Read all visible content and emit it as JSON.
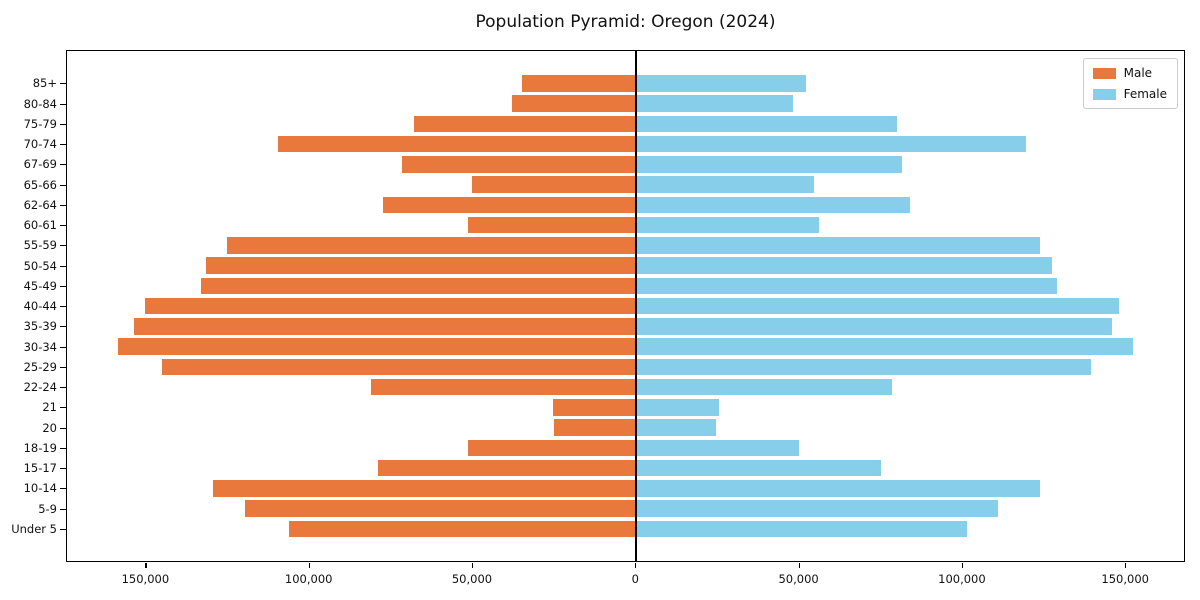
{
  "title": "Population Pyramid: Oregon (2024)",
  "legend": {
    "male_label": "Male",
    "female_label": "Female"
  },
  "colors": {
    "male": "#E8783C",
    "female": "#87CEEB",
    "axis": "#000000"
  },
  "chart_data": {
    "type": "bar",
    "subtype": "population-pyramid",
    "title": "Population Pyramid: Oregon (2024)",
    "xlabel": "",
    "ylabel": "",
    "grid": false,
    "legend_position": "upper right",
    "categories": [
      "85+",
      "80-84",
      "75-79",
      "70-74",
      "67-69",
      "65-66",
      "62-64",
      "60-61",
      "55-59",
      "50-54",
      "45-49",
      "40-44",
      "35-39",
      "30-34",
      "25-29",
      "22-24",
      "21",
      "20",
      "18-19",
      "15-17",
      "10-14",
      "5-9",
      "Under 5"
    ],
    "series": [
      {
        "name": "Male",
        "side": "left",
        "color": "#E8783C",
        "values": [
          35000,
          38000,
          68000,
          109500,
          71500,
          50000,
          77500,
          51500,
          125000,
          131500,
          133000,
          150000,
          153500,
          158500,
          145000,
          81000,
          25500,
          25000,
          51500,
          79000,
          129500,
          119500,
          106000
        ]
      },
      {
        "name": "Female",
        "side": "right",
        "color": "#87CEEB",
        "values": [
          52000,
          48000,
          80000,
          119500,
          81500,
          54500,
          84000,
          56000,
          124000,
          127500,
          129000,
          148000,
          146000,
          152500,
          139500,
          78500,
          25500,
          24500,
          50000,
          75000,
          124000,
          111000,
          101500
        ]
      }
    ],
    "xlim": [
      -174000,
      168000
    ],
    "x_ticks": [
      {
        "value": -150000,
        "label": "150,000"
      },
      {
        "value": -100000,
        "label": "100,000"
      },
      {
        "value": -50000,
        "label": "50,000"
      },
      {
        "value": 0,
        "label": "0"
      },
      {
        "value": 50000,
        "label": "50,000"
      },
      {
        "value": 100000,
        "label": "100,000"
      },
      {
        "value": 150000,
        "label": "150,000"
      }
    ]
  }
}
